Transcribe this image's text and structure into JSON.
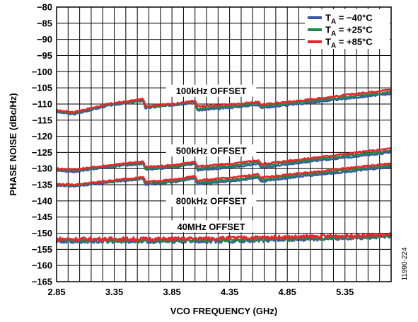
{
  "chart_data": {
    "type": "line",
    "xlabel": "VCO FREQUENCY (GHz)",
    "ylabel": "PHASE NOISE (dBc/Hz)",
    "xlim": [
      2.85,
      5.75
    ],
    "ylim": [
      -165,
      -80
    ],
    "x_ticks": [
      "2.85",
      "3.35",
      "3.85",
      "4.35",
      "4.85",
      "5.35"
    ],
    "y_ticks": [
      "−80",
      "−85",
      "−90",
      "−95",
      "−100",
      "−105",
      "−110",
      "−115",
      "−120",
      "−125",
      "−130",
      "−135",
      "−140",
      "−145",
      "−150",
      "−155",
      "−160",
      "−165"
    ],
    "grid": true,
    "legend_position": "top-right",
    "legend": [
      {
        "prefix": "T",
        "sub": "A",
        "suffix": " = −40°C",
        "color": "#3b58a6"
      },
      {
        "prefix": "T",
        "sub": "A",
        "suffix": " = +25°C",
        "color": "#1e8a45"
      },
      {
        "prefix": "T",
        "sub": "A",
        "suffix": " = +85°C",
        "color": "#e8262b"
      }
    ],
    "annotations": [
      {
        "text": "100kHz OFFSET",
        "x": 4.19,
        "y": -106
      },
      {
        "text": "500kHz OFFSET",
        "x": 4.19,
        "y": -124.5
      },
      {
        "text": "800kHz OFFSET",
        "x": 4.19,
        "y": -140
      },
      {
        "text": "40MHz OFFSET",
        "x": 4.19,
        "y": -148
      }
    ],
    "groups": [
      {
        "name": "100kHz OFFSET",
        "x": [
          2.85,
          3.0,
          3.3,
          3.6,
          3.62,
          3.9,
          4.05,
          4.07,
          4.4,
          4.6,
          4.62,
          5.0,
          5.5,
          5.75
        ],
        "series": [
          {
            "values": [
              -112.5,
              -113.2,
              -110.5,
              -109.0,
              -111.3,
              -110.2,
              -109.5,
              -112.0,
              -111.0,
              -110.2,
              -111.2,
              -109.8,
              -107.8,
              -106.8
            ]
          },
          {
            "values": [
              -112.2,
              -112.8,
              -110.2,
              -108.8,
              -111.0,
              -110.0,
              -109.3,
              -111.5,
              -110.5,
              -109.8,
              -110.8,
              -109.3,
              -107.3,
              -106.2
            ]
          },
          {
            "values": [
              -112.0,
              -112.5,
              -110.0,
              -108.5,
              -110.6,
              -109.8,
              -109.0,
              -110.8,
              -110.0,
              -109.4,
              -110.2,
              -108.8,
              -106.6,
              -105.5
            ]
          }
        ]
      },
      {
        "name": "500kHz OFFSET",
        "x": [
          2.85,
          3.0,
          3.3,
          3.6,
          3.62,
          3.9,
          4.05,
          4.07,
          4.4,
          4.6,
          4.62,
          5.0,
          5.5,
          5.75
        ],
        "series": [
          {
            "values": [
              -130.5,
              -131.0,
              -129.5,
              -128.5,
              -130.3,
              -129.5,
              -128.5,
              -130.5,
              -129.5,
              -128.5,
              -129.8,
              -128.0,
              -126.0,
              -125.0
            ]
          },
          {
            "values": [
              -130.2,
              -130.6,
              -129.2,
              -128.2,
              -130.0,
              -129.2,
              -128.2,
              -130.0,
              -129.0,
              -128.0,
              -129.2,
              -127.5,
              -125.5,
              -124.5
            ]
          },
          {
            "values": [
              -130.0,
              -130.3,
              -129.0,
              -127.8,
              -129.5,
              -128.8,
              -127.8,
              -129.3,
              -128.4,
              -127.4,
              -128.6,
              -127.0,
              -124.8,
              -123.8
            ]
          }
        ]
      },
      {
        "name": "800kHz OFFSET",
        "x": [
          2.85,
          3.0,
          3.3,
          3.6,
          3.62,
          3.9,
          4.05,
          4.07,
          4.4,
          4.6,
          4.62,
          5.0,
          5.5,
          5.75
        ],
        "series": [
          {
            "values": [
              -135.2,
              -135.5,
              -134.2,
              -133.2,
              -135.0,
              -134.0,
              -133.0,
              -134.8,
              -133.8,
              -132.8,
              -134.0,
              -132.3,
              -130.5,
              -129.5
            ]
          },
          {
            "values": [
              -135.0,
              -135.2,
              -134.0,
              -133.0,
              -134.6,
              -133.7,
              -132.7,
              -134.3,
              -133.3,
              -132.3,
              -133.5,
              -131.8,
              -130.0,
              -129.0
            ]
          },
          {
            "values": [
              -134.8,
              -135.0,
              -133.8,
              -132.6,
              -134.1,
              -133.3,
              -132.3,
              -133.7,
              -132.7,
              -131.7,
              -132.8,
              -131.3,
              -129.4,
              -128.4
            ]
          }
        ]
      },
      {
        "name": "40MHz OFFSET",
        "x": [
          2.85,
          3.35,
          3.85,
          4.35,
          4.85,
          5.35,
          5.75
        ],
        "series": [
          {
            "values": [
              -152.5,
              -152.5,
              -152.5,
              -152.5,
              -152.0,
              -151.5,
              -151.0
            ]
          },
          {
            "values": [
              -152.2,
              -152.2,
              -152.2,
              -152.0,
              -151.8,
              -151.3,
              -150.8
            ]
          },
          {
            "values": [
              -151.8,
              -151.8,
              -151.8,
              -151.5,
              -151.2,
              -150.8,
              -150.5
            ]
          }
        ]
      }
    ]
  },
  "side_label": "11990-224"
}
